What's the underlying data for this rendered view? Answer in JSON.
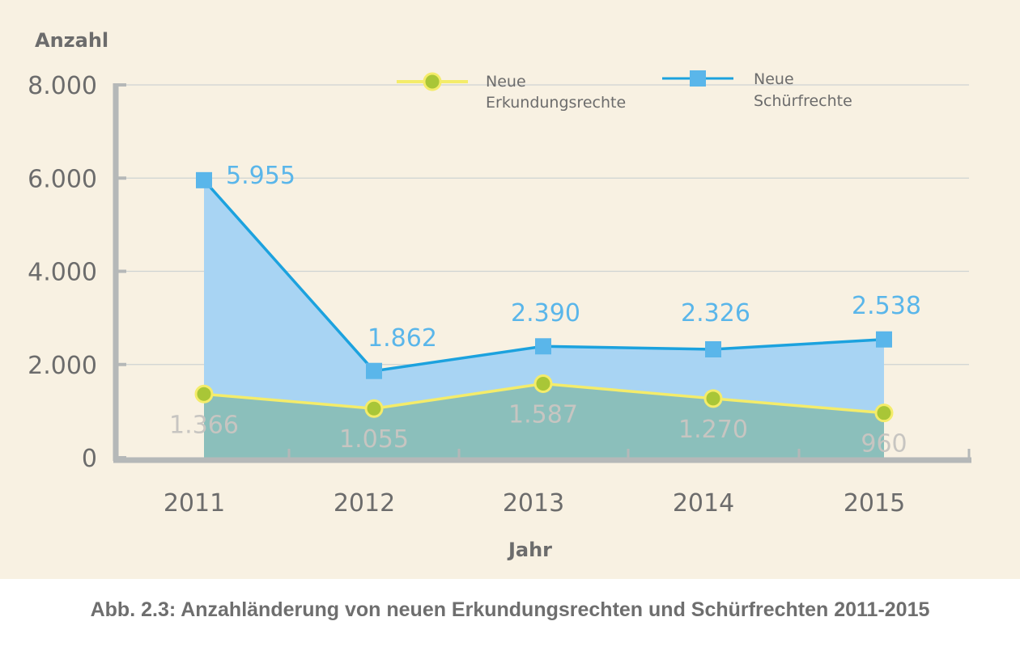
{
  "chart_data": {
    "type": "area",
    "ylabel": "Anzahl",
    "xlabel": "Jahr",
    "categories": [
      "2011",
      "2012",
      "2013",
      "2014",
      "2015"
    ],
    "ylim": [
      0,
      8000
    ],
    "y_ticks": [
      0,
      2000,
      4000,
      6000,
      8000
    ],
    "y_tick_labels": [
      "0",
      "2.000",
      "4.000",
      "6.000",
      "8.000"
    ],
    "grid": true,
    "legend_position": "top",
    "series": [
      {
        "name": "Neue Erkundungsrechte",
        "values": [
          1366,
          1055,
          1587,
          1270,
          960
        ],
        "labels": [
          "1.366",
          "1.055",
          "1.587",
          "1.270",
          "960"
        ],
        "marker": "circle",
        "line_color": "#f4ec6a",
        "marker_color": "#a9c637",
        "fill_color": "#8bbfbb",
        "label_color": "#c7c5c1"
      },
      {
        "name": "Neue Schürfrechte",
        "values": [
          5955,
          1862,
          2390,
          2326,
          2538
        ],
        "labels": [
          "5.955",
          "1.862",
          "2.390",
          "2.326",
          "2.538"
        ],
        "marker": "square",
        "line_color": "#1ca2de",
        "marker_color": "#5ab6ea",
        "fill_color": "#a8d4f3",
        "label_color": "#5ab6ea"
      }
    ],
    "legend": [
      {
        "line1": "Neue",
        "line2": "Erkundungsrechte"
      },
      {
        "line1": "Neue",
        "line2": "Schürfrechte"
      }
    ],
    "caption": "Abb. 2.3: Anzahländerung von neuen Erkundungsrechten und Schürfrechten 2011-2015"
  }
}
